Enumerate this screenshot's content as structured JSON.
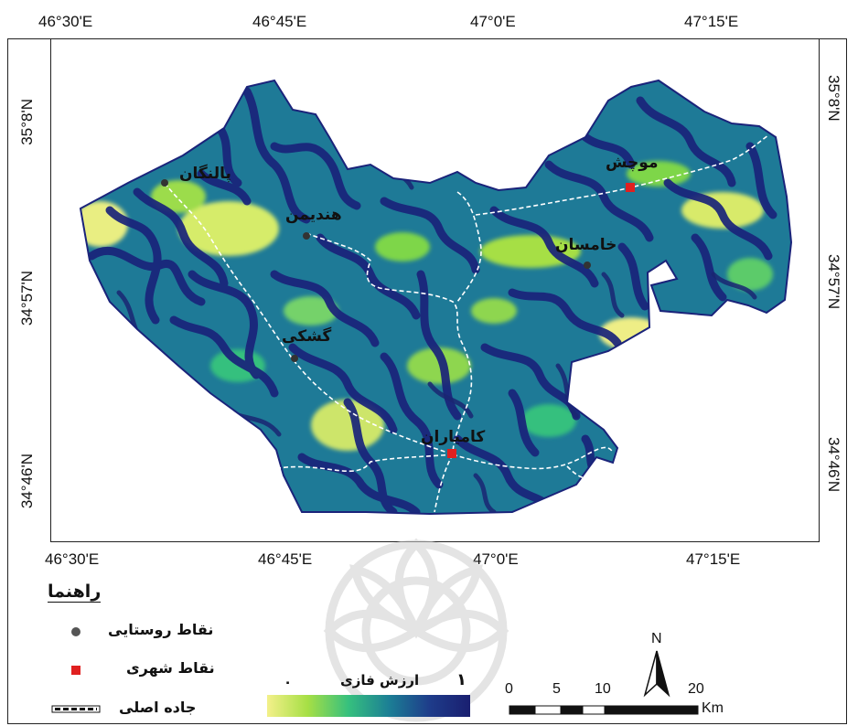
{
  "grid_labels": {
    "top": [
      "46°30'E",
      "46°45'E",
      "47°0'E",
      "47°15'E"
    ],
    "bottom": [
      "46°30'E",
      "46°45'E",
      "47°0'E",
      "47°15'E"
    ],
    "left": [
      "35°8'N",
      "34°57'N",
      "34°46'N"
    ],
    "right": [
      "35°8'N",
      "34°57'N",
      "34°46'N"
    ]
  },
  "places": {
    "pal": "پالنگان",
    "hand": "هندیمن",
    "gash": "گشکی",
    "kham": "خامسان",
    "mou": "موچش",
    "kam": "کامیاران"
  },
  "legend": {
    "title": "راهنما",
    "rural": "نقاط روستایی",
    "urban": "نقاط شهری",
    "road": "جاده اصلی",
    "fuzzy_title": "ارزش فازی",
    "fuzzy_min": "٠",
    "fuzzy_max": "١",
    "north": "N",
    "scale_labels": [
      "0",
      "5",
      "10",
      "20"
    ],
    "scale_unit": "Km"
  },
  "colors": {
    "ridge_dark": "#1a237a",
    "mid_blue": "#1e6f9a",
    "teal": "#24b08a",
    "green": "#7ed64a",
    "yellow": "#f3f08a",
    "urban_point": "#e02020",
    "rural_point": "#444444",
    "road": "#ffffff"
  }
}
